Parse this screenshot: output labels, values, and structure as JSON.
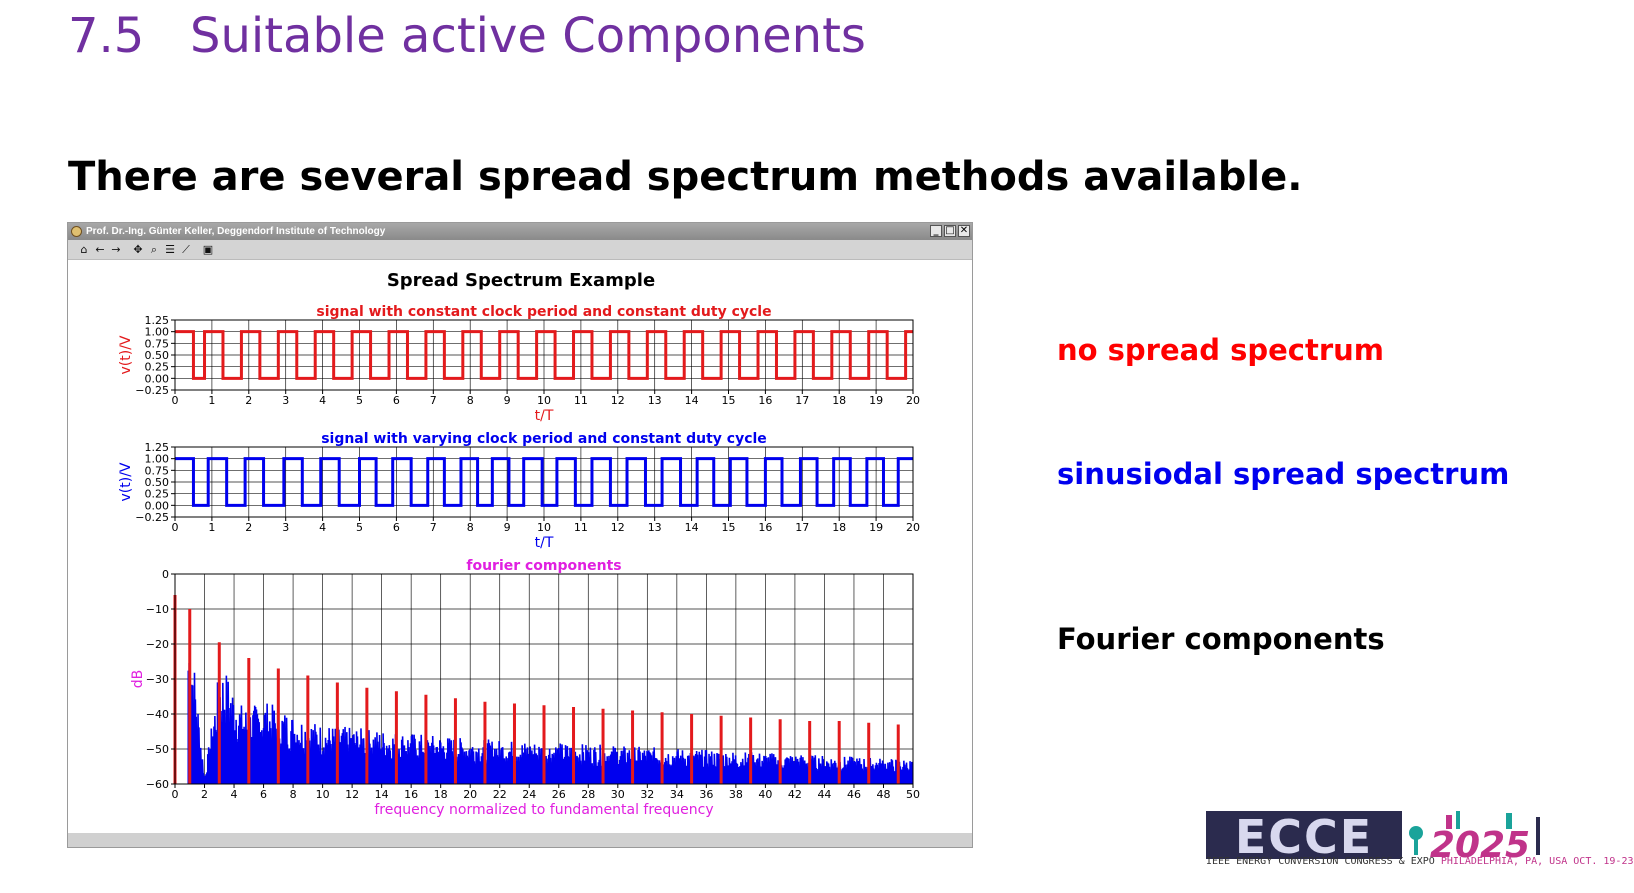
{
  "slide": {
    "number": "7.5",
    "title": "Suitable active Components",
    "subtitle": "There are several spread spectrum methods available."
  },
  "window": {
    "title": "Prof. Dr.-Ing. Günter Keller, Deggendorf Institute of Technology",
    "toolbar_icons": [
      "home-icon",
      "back-icon",
      "forward-icon",
      "pan-icon",
      "zoom-icon",
      "configure-icon",
      "edit-axes-icon",
      "save-icon"
    ],
    "win_buttons": [
      "minimize",
      "maximize",
      "close"
    ]
  },
  "figure_title": "Spread Spectrum Example",
  "labels": {
    "no_spread": "no spread spectrum",
    "sinusoidal": "sinusiodal spread spectrum",
    "fourier": "Fourier components"
  },
  "logo": {
    "text": "ECCE",
    "year": "2025",
    "tagline": "IEEE ENERGY CONVERSION CONGRESS & EXPO",
    "location": "PHILADELPHIA, PA, USA",
    "date": "OCT. 19-23"
  },
  "colors": {
    "title": "#7030a0",
    "red": "#e31a1c",
    "blue": "#0000ee",
    "magenta": "#e020e0"
  },
  "chart_data": [
    {
      "type": "line",
      "title": "signal with constant clock period and constant duty cycle",
      "xlabel": "t/T",
      "ylabel": "v(t)/V",
      "xlim": [
        0,
        20
      ],
      "ylim": [
        -0.25,
        1.25
      ],
      "xticks": [
        0,
        1,
        2,
        3,
        4,
        5,
        6,
        7,
        8,
        9,
        10,
        11,
        12,
        13,
        14,
        15,
        16,
        17,
        18,
        19,
        20
      ],
      "yticks": [
        -0.25,
        0.0,
        0.25,
        0.5,
        0.75,
        1.0,
        1.25
      ],
      "ytick_labels": [
        "−0.25",
        "0.00",
        "0.25",
        "0.50",
        "0.75",
        "1.00",
        "1.25"
      ],
      "grid": true,
      "color": "#e31a1c",
      "series": [
        {
          "edges": [
            0.0,
            0.5,
            0.8,
            1.3,
            1.8,
            2.3,
            2.8,
            3.3,
            3.8,
            4.3,
            4.8,
            5.3,
            5.8,
            6.3,
            6.8,
            7.3,
            7.8,
            8.3,
            8.8,
            9.3,
            9.8,
            10.3,
            10.8,
            11.3,
            11.8,
            12.3,
            12.8,
            13.3,
            13.8,
            14.3,
            14.8,
            15.3,
            15.8,
            16.3,
            16.8,
            17.3,
            17.8,
            18.3,
            18.8,
            19.3,
            19.8,
            20.0
          ],
          "start_level": 1
        }
      ]
    },
    {
      "type": "line",
      "title": "signal with varying clock period and constant duty cycle",
      "xlabel": "t/T",
      "ylabel": "v(t)/V",
      "xlim": [
        0,
        20
      ],
      "ylim": [
        -0.25,
        1.25
      ],
      "xticks": [
        0,
        1,
        2,
        3,
        4,
        5,
        6,
        7,
        8,
        9,
        10,
        11,
        12,
        13,
        14,
        15,
        16,
        17,
        18,
        19,
        20
      ],
      "yticks": [
        -0.25,
        0.0,
        0.25,
        0.5,
        0.75,
        1.0,
        1.25
      ],
      "ytick_labels": [
        "−0.25",
        "0.00",
        "0.25",
        "0.50",
        "0.75",
        "1.00",
        "1.25"
      ],
      "grid": true,
      "color": "#0000ee",
      "series": [
        {
          "edges": [
            0.0,
            0.5,
            0.9,
            1.4,
            1.9,
            2.4,
            2.95,
            3.45,
            3.95,
            4.45,
            5.0,
            5.45,
            5.9,
            6.4,
            6.85,
            7.3,
            7.75,
            8.2,
            8.6,
            9.05,
            9.45,
            9.95,
            10.35,
            10.85,
            11.3,
            11.8,
            12.25,
            12.75,
            13.2,
            13.7,
            14.15,
            14.6,
            15.05,
            15.5,
            16.0,
            16.45,
            16.95,
            17.4,
            17.85,
            18.3,
            18.75,
            19.2,
            19.6,
            20.0
          ],
          "start_level": 1
        }
      ]
    },
    {
      "type": "bar",
      "title": "fourier components",
      "xlabel": "frequency normalized to fundamental frequency",
      "ylabel": "dB",
      "xlim": [
        0,
        50
      ],
      "ylim": [
        -60,
        0
      ],
      "xticks": [
        0,
        2,
        4,
        6,
        8,
        10,
        12,
        14,
        16,
        18,
        20,
        22,
        24,
        26,
        28,
        30,
        32,
        34,
        36,
        38,
        40,
        42,
        44,
        46,
        48,
        50
      ],
      "yticks": [
        -60,
        -50,
        -40,
        -30,
        -20,
        -10,
        0
      ],
      "ytick_labels": [
        "−60",
        "−50",
        "−40",
        "−30",
        "−20",
        "−10",
        "0"
      ],
      "grid": true,
      "series": [
        {
          "name": "constant clock period",
          "color": "#e31a1c",
          "x": [
            0,
            1,
            3,
            5,
            7,
            9,
            11,
            13,
            15,
            17,
            19,
            21,
            23,
            25,
            27,
            29,
            31,
            33,
            35,
            37,
            39,
            41,
            43,
            45,
            47,
            49
          ],
          "values": [
            -6,
            -10,
            -19.5,
            -24,
            -27,
            -29,
            -31,
            -32.5,
            -33.5,
            -34.5,
            -35.5,
            -36.5,
            -37,
            -37.5,
            -38,
            -38.5,
            -39,
            -39.5,
            -40,
            -40.5,
            -41,
            -41.5,
            -42,
            -42,
            -42.5,
            -43
          ]
        },
        {
          "name": "varying clock period",
          "color": "#0000ee",
          "envelope_x": [
            0.9,
            1.0,
            1.3,
            2.0,
            3.0,
            3.4,
            4.5,
            5.0,
            6.0,
            8.0,
            10.0,
            15.0,
            20.0,
            25.0,
            30.0,
            35.0,
            40.0,
            45.0,
            50.0
          ],
          "envelope_y": [
            -15,
            -14,
            -25,
            -58,
            -27,
            -27,
            -37,
            -38,
            -36,
            -40,
            -43,
            -45,
            -47,
            -48,
            -49,
            -50,
            -51,
            -52,
            -53
          ]
        }
      ]
    }
  ]
}
